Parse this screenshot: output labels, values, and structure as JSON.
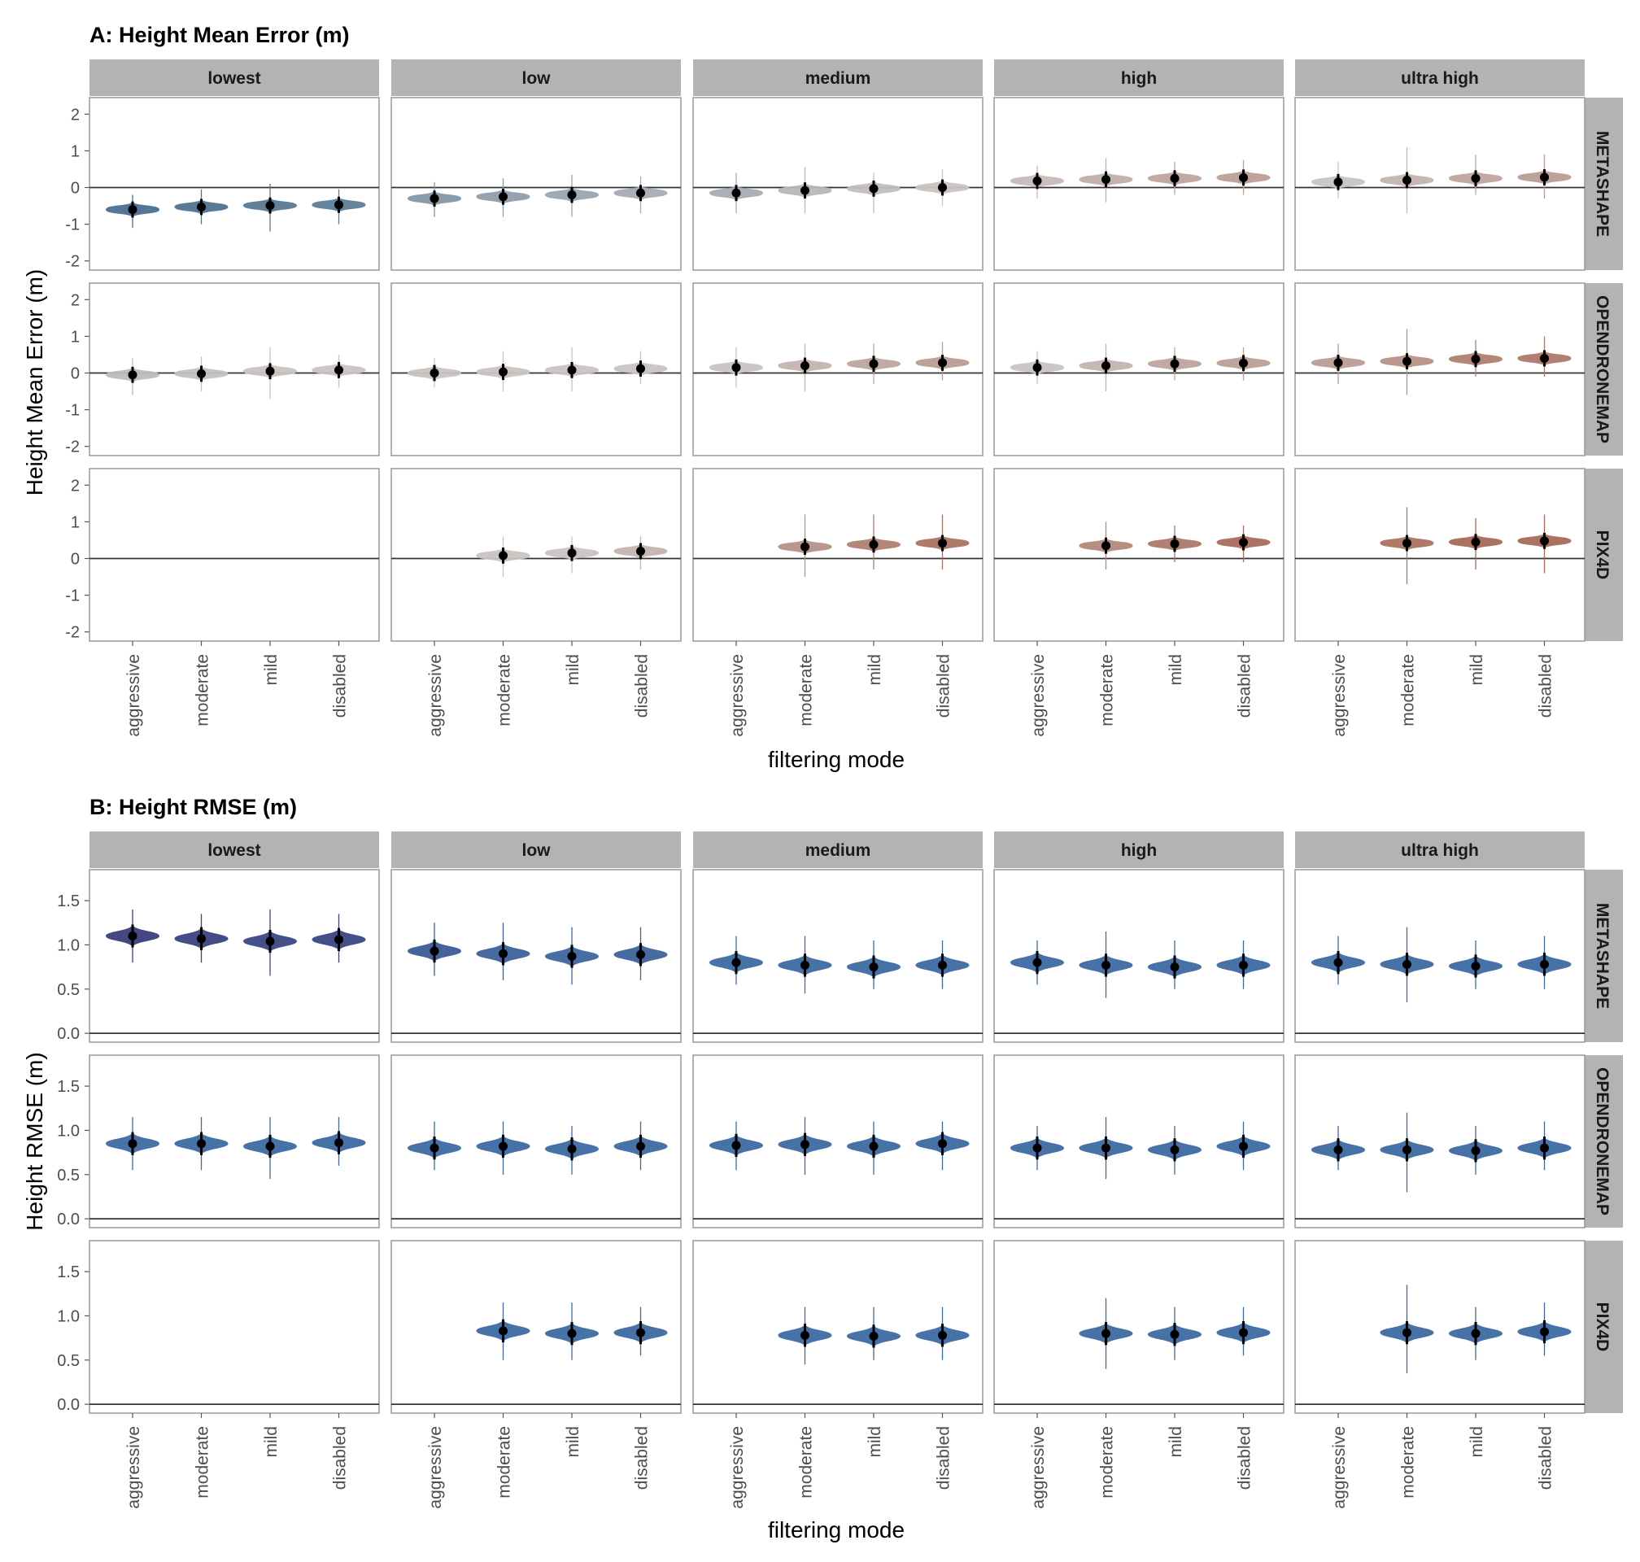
{
  "figure": {
    "xlabel": "filtering mode",
    "facet_columns": [
      "lowest",
      "low",
      "medium",
      "high",
      "ultra high"
    ],
    "facet_rows": [
      "METASHAPE",
      "OPENDRONEMAP",
      "PIX4D"
    ],
    "categories": [
      "aggressive",
      "moderate",
      "mild",
      "disabled"
    ]
  },
  "chart_data": [
    {
      "type": "violin",
      "title": "A: Height Mean Error (m)",
      "xlabel": "filtering mode",
      "ylabel": "Height Mean Error (m)",
      "ylim": [
        -2.25,
        2.45
      ],
      "yticks": [
        -2,
        -1,
        0,
        1,
        2
      ],
      "reference_line": 0,
      "grid": false,
      "color_scale": "diverging: negative = slate blue, near zero = grey, positive = brown",
      "colors": {
        "negative": "#4a7090",
        "neutral": "#c9c3c1",
        "positive": "#a86a58",
        "point": "#000000"
      },
      "categories": [
        "aggressive",
        "moderate",
        "mild",
        "disabled"
      ],
      "panels": [
        {
          "row": "METASHAPE",
          "col": "lowest",
          "medians": [
            -0.6,
            -0.53,
            -0.49,
            -0.47
          ],
          "min": [
            -1.1,
            -1.0,
            -1.2,
            -1.0
          ],
          "max": [
            -0.2,
            -0.05,
            0.1,
            -0.05
          ]
        },
        {
          "row": "METASHAPE",
          "col": "low",
          "medians": [
            -0.3,
            -0.25,
            -0.2,
            -0.15
          ],
          "min": [
            -0.8,
            -0.8,
            -0.8,
            -0.7
          ],
          "max": [
            0.15,
            0.25,
            0.35,
            0.3
          ]
        },
        {
          "row": "METASHAPE",
          "col": "medium",
          "medians": [
            -0.15,
            -0.08,
            -0.03,
            0.0
          ],
          "min": [
            -0.7,
            -0.7,
            -0.7,
            -0.5
          ],
          "max": [
            0.4,
            0.55,
            0.4,
            0.5
          ]
        },
        {
          "row": "METASHAPE",
          "col": "high",
          "medians": [
            0.18,
            0.22,
            0.25,
            0.27
          ],
          "min": [
            -0.3,
            -0.4,
            -0.2,
            -0.2
          ],
          "max": [
            0.6,
            0.8,
            0.7,
            0.75
          ]
        },
        {
          "row": "METASHAPE",
          "col": "ultra high",
          "medians": [
            0.15,
            0.2,
            0.25,
            0.28
          ],
          "min": [
            -0.3,
            -0.7,
            -0.2,
            -0.3
          ],
          "max": [
            0.7,
            1.1,
            0.9,
            0.9
          ]
        },
        {
          "row": "OPENDRONEMAP",
          "col": "lowest",
          "medians": [
            -0.05,
            -0.02,
            0.05,
            0.08
          ],
          "min": [
            -0.6,
            -0.5,
            -0.7,
            -0.4
          ],
          "max": [
            0.4,
            0.45,
            0.7,
            0.5
          ]
        },
        {
          "row": "OPENDRONEMAP",
          "col": "low",
          "medians": [
            0.0,
            0.03,
            0.08,
            0.12
          ],
          "min": [
            -0.4,
            -0.5,
            -0.5,
            -0.3
          ],
          "max": [
            0.4,
            0.6,
            0.7,
            0.6
          ]
        },
        {
          "row": "OPENDRONEMAP",
          "col": "medium",
          "medians": [
            0.15,
            0.2,
            0.25,
            0.28
          ],
          "min": [
            -0.4,
            -0.5,
            -0.3,
            -0.2
          ],
          "max": [
            0.7,
            0.8,
            0.8,
            0.85
          ]
        },
        {
          "row": "OPENDRONEMAP",
          "col": "high",
          "medians": [
            0.15,
            0.2,
            0.25,
            0.27
          ],
          "min": [
            -0.3,
            -0.5,
            -0.2,
            -0.2
          ],
          "max": [
            0.6,
            0.8,
            0.7,
            0.7
          ]
        },
        {
          "row": "OPENDRONEMAP",
          "col": "ultra high",
          "medians": [
            0.28,
            0.32,
            0.38,
            0.4
          ],
          "min": [
            -0.3,
            -0.6,
            -0.1,
            -0.1
          ],
          "max": [
            0.8,
            1.2,
            0.9,
            1.0
          ]
        },
        {
          "row": "PIX4D",
          "col": "lowest",
          "medians": [
            null,
            null,
            null,
            null
          ],
          "min": [
            null,
            null,
            null,
            null
          ],
          "max": [
            null,
            null,
            null,
            null
          ]
        },
        {
          "row": "PIX4D",
          "col": "low",
          "medians": [
            null,
            0.08,
            0.15,
            0.2
          ],
          "min": [
            null,
            -0.5,
            -0.4,
            -0.3
          ],
          "max": [
            null,
            0.6,
            0.6,
            0.6
          ]
        },
        {
          "row": "PIX4D",
          "col": "medium",
          "medians": [
            null,
            0.32,
            0.38,
            0.42
          ],
          "min": [
            null,
            -0.5,
            -0.3,
            -0.3
          ],
          "max": [
            null,
            1.2,
            1.2,
            1.2
          ]
        },
        {
          "row": "PIX4D",
          "col": "high",
          "medians": [
            null,
            0.35,
            0.4,
            0.44
          ],
          "min": [
            null,
            -0.3,
            -0.1,
            -0.1
          ],
          "max": [
            null,
            1.0,
            0.9,
            0.9
          ]
        },
        {
          "row": "PIX4D",
          "col": "ultra high",
          "medians": [
            null,
            0.42,
            0.45,
            0.48
          ],
          "min": [
            null,
            -0.7,
            -0.3,
            -0.4
          ],
          "max": [
            null,
            1.4,
            1.1,
            1.2
          ]
        }
      ]
    },
    {
      "type": "violin",
      "title": "B: Height RMSE (m)",
      "xlabel": "filtering mode",
      "ylabel": "Height RMSE (m)",
      "ylim": [
        -0.1,
        1.85
      ],
      "yticks": [
        0.0,
        0.5,
        1.0,
        1.5
      ],
      "reference_line": 0,
      "grid": false,
      "color_scale": "sequential: ~0.8 = steel blue, ~1.1 = dark indigo",
      "colors": {
        "low": "#3d6aa3",
        "high": "#3a3d7a",
        "point": "#000000"
      },
      "categories": [
        "aggressive",
        "moderate",
        "mild",
        "disabled"
      ],
      "panels": [
        {
          "row": "METASHAPE",
          "col": "lowest",
          "medians": [
            1.1,
            1.07,
            1.04,
            1.06
          ],
          "min": [
            0.8,
            0.8,
            0.65,
            0.8
          ],
          "max": [
            1.4,
            1.35,
            1.4,
            1.35
          ]
        },
        {
          "row": "METASHAPE",
          "col": "low",
          "medians": [
            0.93,
            0.9,
            0.87,
            0.89
          ],
          "min": [
            0.65,
            0.6,
            0.55,
            0.6
          ],
          "max": [
            1.25,
            1.25,
            1.2,
            1.2
          ]
        },
        {
          "row": "METASHAPE",
          "col": "medium",
          "medians": [
            0.8,
            0.77,
            0.75,
            0.77
          ],
          "min": [
            0.55,
            0.45,
            0.5,
            0.5
          ],
          "max": [
            1.1,
            1.1,
            1.05,
            1.05
          ]
        },
        {
          "row": "METASHAPE",
          "col": "high",
          "medians": [
            0.8,
            0.77,
            0.75,
            0.77
          ],
          "min": [
            0.55,
            0.4,
            0.5,
            0.5
          ],
          "max": [
            1.05,
            1.15,
            1.05,
            1.05
          ]
        },
        {
          "row": "METASHAPE",
          "col": "ultra high",
          "medians": [
            0.8,
            0.78,
            0.76,
            0.78
          ],
          "min": [
            0.55,
            0.35,
            0.5,
            0.5
          ],
          "max": [
            1.1,
            1.2,
            1.05,
            1.1
          ]
        },
        {
          "row": "OPENDRONEMAP",
          "col": "lowest",
          "medians": [
            0.85,
            0.85,
            0.82,
            0.86
          ],
          "min": [
            0.55,
            0.55,
            0.45,
            0.6
          ],
          "max": [
            1.15,
            1.15,
            1.15,
            1.15
          ]
        },
        {
          "row": "OPENDRONEMAP",
          "col": "low",
          "medians": [
            0.8,
            0.82,
            0.79,
            0.82
          ],
          "min": [
            0.55,
            0.5,
            0.5,
            0.55
          ],
          "max": [
            1.1,
            1.1,
            1.05,
            1.1
          ]
        },
        {
          "row": "OPENDRONEMAP",
          "col": "medium",
          "medians": [
            0.83,
            0.84,
            0.82,
            0.85
          ],
          "min": [
            0.55,
            0.5,
            0.5,
            0.55
          ],
          "max": [
            1.1,
            1.15,
            1.1,
            1.1
          ]
        },
        {
          "row": "OPENDRONEMAP",
          "col": "high",
          "medians": [
            0.8,
            0.8,
            0.78,
            0.82
          ],
          "min": [
            0.55,
            0.45,
            0.5,
            0.55
          ],
          "max": [
            1.05,
            1.15,
            1.05,
            1.1
          ]
        },
        {
          "row": "OPENDRONEMAP",
          "col": "ultra high",
          "medians": [
            0.78,
            0.78,
            0.77,
            0.8
          ],
          "min": [
            0.55,
            0.3,
            0.5,
            0.55
          ],
          "max": [
            1.05,
            1.2,
            1.05,
            1.1
          ]
        },
        {
          "row": "PIX4D",
          "col": "lowest",
          "medians": [
            null,
            null,
            null,
            null
          ],
          "min": [
            null,
            null,
            null,
            null
          ],
          "max": [
            null,
            null,
            null,
            null
          ]
        },
        {
          "row": "PIX4D",
          "col": "low",
          "medians": [
            null,
            0.83,
            0.8,
            0.81
          ],
          "min": [
            null,
            0.5,
            0.5,
            0.55
          ],
          "max": [
            null,
            1.15,
            1.15,
            1.1
          ]
        },
        {
          "row": "PIX4D",
          "col": "medium",
          "medians": [
            null,
            0.78,
            0.77,
            0.78
          ],
          "min": [
            null,
            0.45,
            0.5,
            0.5
          ],
          "max": [
            null,
            1.1,
            1.1,
            1.1
          ]
        },
        {
          "row": "PIX4D",
          "col": "high",
          "medians": [
            null,
            0.8,
            0.79,
            0.81
          ],
          "min": [
            null,
            0.4,
            0.5,
            0.55
          ],
          "max": [
            null,
            1.2,
            1.1,
            1.1
          ]
        },
        {
          "row": "PIX4D",
          "col": "ultra high",
          "medians": [
            null,
            0.81,
            0.8,
            0.82
          ],
          "min": [
            null,
            0.35,
            0.5,
            0.55
          ],
          "max": [
            null,
            1.35,
            1.1,
            1.15
          ]
        }
      ]
    }
  ]
}
